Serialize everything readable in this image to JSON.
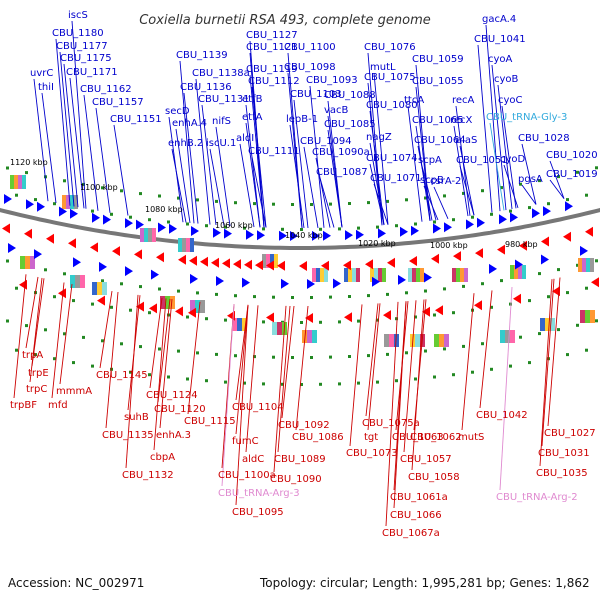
{
  "title": "Coxiella burnetii RSA 493, complete genome",
  "footer": {
    "accession": "Accession: NC_002971",
    "summary": "Topology: circular; Length: 1,995,281 bp; Genes: 1,862"
  },
  "colors": {
    "forward_label": "#0000cc",
    "reverse_label": "#cc0000",
    "trna_label": "#e08ad0",
    "trna_forward_label": "#33aadd",
    "backbone": "#777777",
    "gc_dots": "#228822"
  },
  "scale_labels": [
    "1120 kbp",
    "1100 kbp",
    "1080 kbp",
    "1060 kbp",
    "1040 kbp",
    "1020 kbp",
    "1000 kbp",
    "980 kbp"
  ],
  "forward_genes": [
    "iscS",
    "CBU_1180",
    "CBU_1177",
    "CBU_1175",
    "uvrC",
    "CBU_1171",
    "thiI",
    "CBU_1162",
    "CBU_1157",
    "CBU_1151",
    "CBU_1139",
    "CBU_1138a",
    "CBU_1136",
    "secD",
    "enhA.4",
    "enhB.2",
    "CBU_1131",
    "nifS",
    "iscU.1",
    "CBU_1127",
    "CBU_1121",
    "CBU_1119",
    "etfB",
    "etfA",
    "aldI",
    "CBU_1112",
    "CBU_1111",
    "CBU_1100",
    "CBU_1098",
    "CBU_1103",
    "lepB-1",
    "CBU_1093",
    "vacB",
    "CBU_1088",
    "CBU_1094",
    "CBU_1085",
    "CBU_1090a",
    "CBU_1087",
    "CBU_1076",
    "mutL",
    "CBU_1075",
    "CBU_1080",
    "nagZ",
    "CBU_1074",
    "CBU_1071",
    "CBU_1059",
    "ttcA",
    "CBU_1055",
    "recA",
    "CBU_1065",
    "recX",
    "CBU_1064",
    "alaS",
    "scpA",
    "CBU_1051",
    "scpB",
    "csrA-2",
    "gacA.4",
    "CBU_1041",
    "cyoA",
    "cyoB",
    "cyoC",
    "CBU_tRNA-Gly-3",
    "CBU_1028",
    "cyoD",
    "pgsA",
    "CBU_1020",
    "CBU_1019"
  ],
  "reverse_genes": [
    "trpA",
    "trpE",
    "trpC",
    "trpBF",
    "mfd",
    "mmmA",
    "CBU_1145",
    "suhB",
    "CBU_1124",
    "CBU_1120",
    "CBU_1115",
    "CBU_1135",
    "enhA.3",
    "cbpA",
    "CBU_1132",
    "CBU_1104",
    "CBU_1092",
    "fumC",
    "CBU_1086",
    "CBU_1089",
    "aldC",
    "CBU_1100a",
    "CBU_1090",
    "CBU_tRNA-Arg-3",
    "CBU_1095",
    "CBU_1075a",
    "tgt",
    "CBU_1073",
    "CBU_1063",
    "CBU_1062",
    "CBU_1057",
    "CBU_1058",
    "CBU_1061a",
    "CBU_1066",
    "CBU_1067a",
    "mutS",
    "CBU_1042",
    "CBU_1027",
    "CBU_1031",
    "CBU_1035",
    "CBU_tRNA-Arg-2"
  ]
}
